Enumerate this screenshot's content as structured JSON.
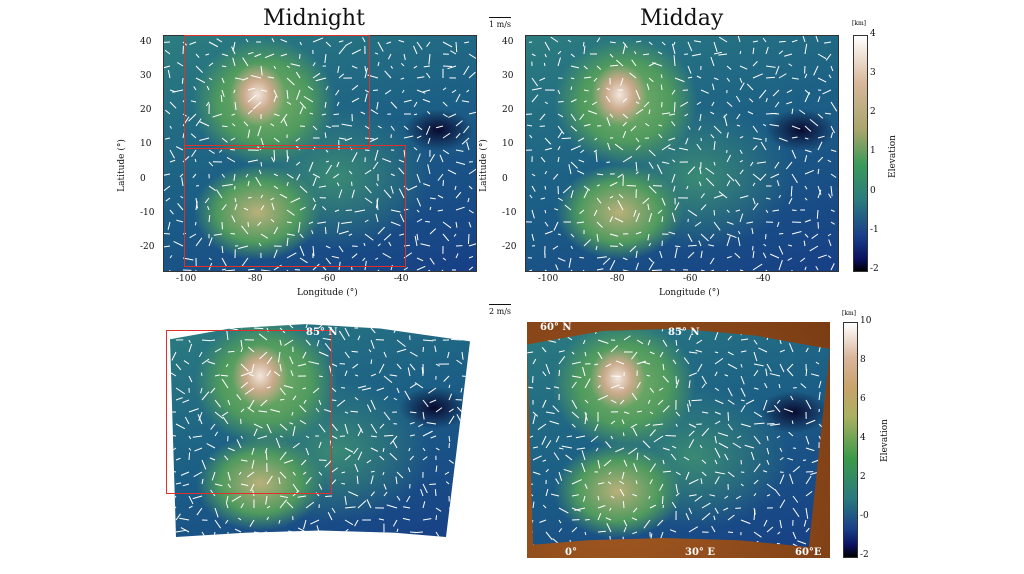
{
  "titles": {
    "left": "Midnight",
    "right": "Midday"
  },
  "scales": {
    "top": "1 m/s",
    "bottom": "2 m/s"
  },
  "axes": {
    "ylabel": "Latitude (°)",
    "xlabel": "Longitude (°)",
    "lat_ticks": [
      "40",
      "30",
      "20",
      "10",
      "0",
      "-10",
      "-20"
    ],
    "lon_ticks": [
      "-100",
      "-80",
      "-60",
      "-40"
    ]
  },
  "colorbar_top": {
    "unit": "[km]",
    "label": "Elevation",
    "ticks": [
      "4",
      "3",
      "2",
      "1",
      "0",
      "-1",
      "-2"
    ]
  },
  "colorbar_bottom": {
    "unit": "[km]",
    "label": "Elevation",
    "ticks": [
      "10",
      "8",
      "6",
      "4",
      "2",
      "-0",
      "-2"
    ]
  },
  "map_labels": {
    "lat85_left": "85° N",
    "lat60": "60° N",
    "lat85_right": "85° N",
    "lon0": "0°",
    "lon30": "30° E",
    "lon60": "60°E"
  },
  "colors": {
    "highlight_box": "#e0302a",
    "low": "#000000",
    "high": "#ffffff",
    "terrain_bg": "#8a4a1c"
  }
}
